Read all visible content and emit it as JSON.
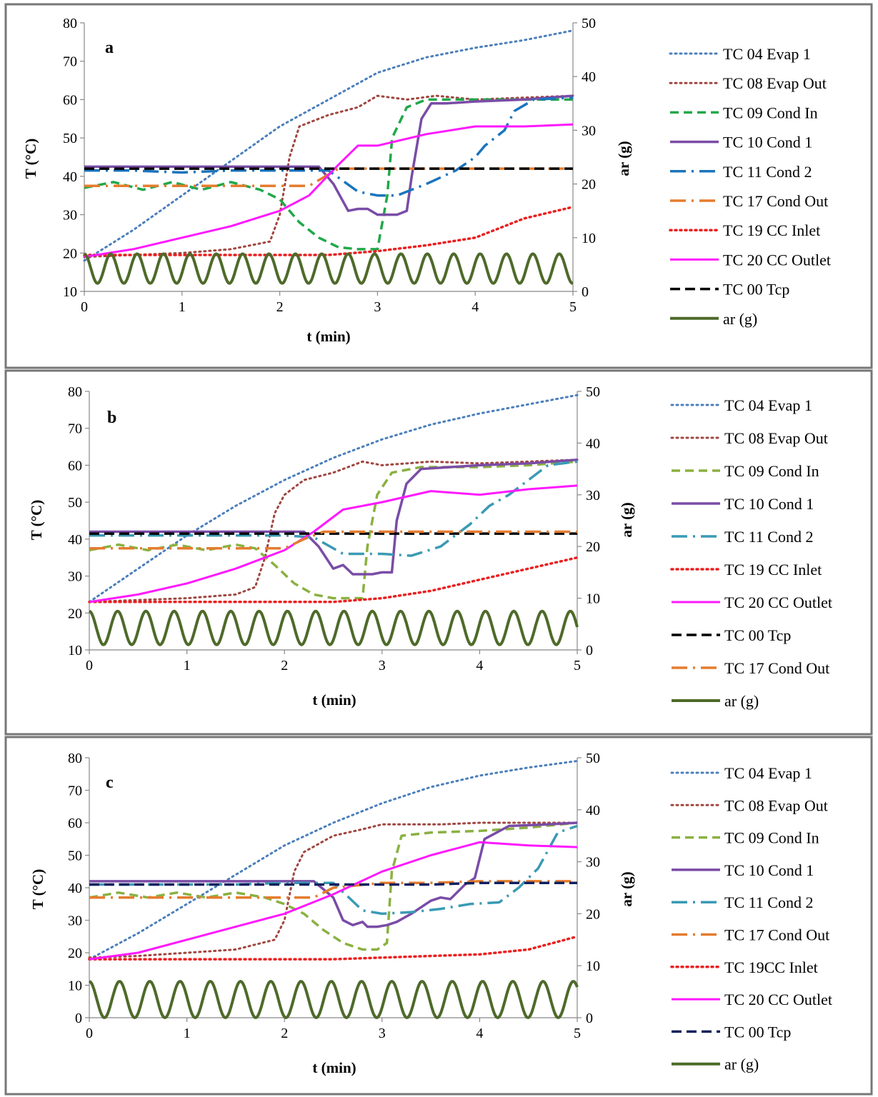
{
  "colors": {
    "TC 04 Evap 1": "#4a7ebb",
    "TC 08 Evap Out": "#a0453f",
    "TC 09 Cond In a": "#21a84a",
    "TC 09 Cond In bc": "#8ab141",
    "TC 10 Cond 1": "#7a4ca6",
    "TC 11 Cond 2 a": "#1a74bd",
    "TC 11 Cond 2 bc": "#3a9ab4",
    "TC 17 Cond Out": "#e57c2e",
    "TC 19 CC Inlet": "#ea1f1f",
    "TC 20 CC Outlet": "#ff18ff",
    "TC 00 Tcp a": "#000000",
    "TC 00 Tcp bc": "#10205e",
    "ar (g)": "#4e6a2a",
    "frame": "#777777"
  },
  "chart_data": [
    {
      "panel": "a",
      "type": "line",
      "xlabel": "t (min)",
      "ylabel": "T (°C)",
      "y2label": "ar (g)",
      "xlim": [
        0,
        5
      ],
      "ylim": [
        10,
        80
      ],
      "y2lim": [
        0,
        50
      ],
      "xticks": [
        "0",
        "1",
        "2",
        "3",
        "4",
        "5"
      ],
      "yticks": [
        "10",
        "20",
        "30",
        "40",
        "50",
        "60",
        "70",
        "80"
      ],
      "y2ticks": [
        "0",
        "10",
        "20",
        "30",
        "40",
        "50"
      ],
      "legend": [
        "TC 04 Evap 1",
        "TC 08 Evap Out",
        "TC 09 Cond In",
        "TC 10 Cond 1",
        "TC 11 Cond 2",
        "TC 17 Cond Out",
        "TC 19 CC Inlet",
        "TC 20 CC Outlet",
        "TC 00 Tcp",
        "ar (g)"
      ],
      "series": [
        {
          "name": "TC 04 Evap 1",
          "x": [
            0,
            0.5,
            1,
            1.5,
            2,
            2.5,
            3,
            3.5,
            4,
            4.5,
            5
          ],
          "y": [
            18,
            26,
            35,
            44,
            53,
            60,
            67,
            71,
            73.5,
            75.5,
            78
          ]
        },
        {
          "name": "TC 08 Evap Out",
          "x": [
            0,
            0.5,
            1,
            1.5,
            1.9,
            2.0,
            2.1,
            2.2,
            2.5,
            2.8,
            3.0,
            3.3,
            3.6,
            4.0,
            4.5,
            5
          ],
          "y": [
            19,
            19.5,
            20,
            21,
            23,
            30,
            45,
            53,
            56,
            58,
            61,
            60,
            61,
            60,
            60.5,
            61
          ]
        },
        {
          "name": "TC 09 Cond In",
          "x": [
            0,
            0.3,
            0.6,
            0.9,
            1.2,
            1.5,
            1.8,
            2.0,
            2.2,
            2.4,
            2.6,
            2.8,
            3.0,
            3.1,
            3.15,
            3.3,
            3.5,
            4.0,
            4.5,
            5
          ],
          "y": [
            37,
            38.5,
            36.5,
            38.5,
            36.5,
            38.5,
            36.5,
            34,
            28,
            24,
            21.5,
            21,
            21,
            35,
            50,
            58,
            60,
            60,
            60,
            60
          ]
        },
        {
          "name": "TC 10 Cond 1",
          "x": [
            0,
            0.5,
            1,
            1.5,
            2,
            2.4,
            2.55,
            2.7,
            2.8,
            2.9,
            3.0,
            3.1,
            3.2,
            3.3,
            3.35,
            3.45,
            3.55,
            3.7,
            4.0,
            4.5,
            5
          ],
          "y": [
            42.5,
            42.5,
            42.5,
            42.5,
            42.5,
            42.5,
            38,
            31,
            31.5,
            31.5,
            30,
            30,
            30,
            31,
            40,
            55,
            59,
            59,
            59.5,
            60,
            61
          ]
        },
        {
          "name": "TC 11 Cond 2",
          "x": [
            0,
            0.5,
            1,
            1.5,
            2,
            2.5,
            2.8,
            3.0,
            3.2,
            3.5,
            3.8,
            4.0,
            4.1,
            4.3,
            4.4,
            4.6,
            5
          ],
          "y": [
            41.5,
            41.5,
            41,
            41.5,
            41.5,
            41.5,
            36,
            35,
            35,
            38,
            41.5,
            45,
            48,
            52,
            57,
            60,
            60.5
          ]
        },
        {
          "name": "TC 17 Cond Out",
          "x": [
            0,
            0.5,
            1,
            1.5,
            2,
            2.3,
            2.6,
            3.0,
            3.5,
            4,
            4.5,
            5
          ],
          "y": [
            37.5,
            37.5,
            37.5,
            37.5,
            37.5,
            37.5,
            42,
            42,
            42,
            42,
            42,
            42
          ]
        },
        {
          "name": "TC 19 CC Inlet",
          "x": [
            0,
            0.5,
            1,
            1.5,
            2,
            2.5,
            3,
            3.5,
            4,
            4.5,
            5
          ],
          "y": [
            19.5,
            19.5,
            19.5,
            19.5,
            19.5,
            19.5,
            20.5,
            22,
            24,
            29,
            32
          ]
        },
        {
          "name": "TC 20 CC Outlet",
          "x": [
            0,
            0.5,
            1,
            1.5,
            2,
            2.3,
            2.6,
            2.8,
            3.0,
            3.5,
            4,
            4.5,
            5
          ],
          "y": [
            19,
            21,
            24,
            27,
            31,
            35,
            43,
            48,
            48,
            51,
            53,
            53,
            53.5
          ]
        },
        {
          "name": "TC 00 Tcp",
          "x": [
            0,
            0.5,
            1,
            1.5,
            2,
            2.5,
            3,
            3.5,
            4,
            4.5,
            5
          ],
          "y": [
            42,
            42,
            42,
            42,
            42,
            42,
            42,
            42,
            42,
            42,
            42
          ]
        },
        {
          "name": "ar (g)",
          "axis": "y2",
          "wave": {
            "min": 1.5,
            "max": 7,
            "period": 0.27,
            "phase": 0
          }
        }
      ]
    },
    {
      "panel": "b",
      "type": "line",
      "xlabel": "t (min)",
      "ylabel": "T  (°C)",
      "y2label": "ar (g)",
      "xlim": [
        0,
        5
      ],
      "ylim": [
        10,
        80
      ],
      "y2lim": [
        0,
        50
      ],
      "xticks": [
        "0",
        "1",
        "2",
        "3",
        "4",
        "5"
      ],
      "yticks": [
        "10",
        "20",
        "30",
        "40",
        "50",
        "60",
        "70",
        "80"
      ],
      "y2ticks": [
        "0",
        "10",
        "20",
        "30",
        "40",
        "50"
      ],
      "legend": [
        "TC 04 Evap 1",
        "TC 08 Evap Out",
        "TC 09 Cond In",
        "TC 10 Cond 1",
        "TC 11 Cond 2",
        "TC 19 CC Inlet",
        "TC 20 CC Outlet",
        "TC 00 Tcp",
        "TC 17 Cond Out",
        "ar (g)"
      ],
      "series": [
        {
          "name": "TC 04 Evap 1",
          "x": [
            0,
            0.5,
            1,
            1.5,
            2,
            2.5,
            3,
            3.5,
            4,
            4.5,
            5
          ],
          "y": [
            23,
            32,
            41,
            49,
            56,
            62,
            67,
            71,
            74,
            76.5,
            79
          ]
        },
        {
          "name": "TC 08 Evap Out",
          "x": [
            0,
            0.5,
            1,
            1.5,
            1.7,
            1.8,
            1.9,
            2.0,
            2.2,
            2.5,
            2.8,
            3.0,
            3.5,
            4,
            4.5,
            5
          ],
          "y": [
            23,
            23.5,
            24,
            25,
            27,
            35,
            47,
            52,
            56,
            58,
            61,
            60,
            61,
            60.5,
            61,
            61.5
          ]
        },
        {
          "name": "TC 09 Cond In",
          "x": [
            0,
            0.3,
            0.6,
            0.9,
            1.2,
            1.5,
            1.7,
            1.9,
            2.1,
            2.3,
            2.5,
            2.7,
            2.8,
            2.85,
            2.95,
            3.1,
            3.4,
            4,
            4.5,
            5
          ],
          "y": [
            37,
            38.5,
            37,
            38.5,
            37,
            38.5,
            37.5,
            33,
            28,
            25,
            24,
            24,
            24,
            38,
            52,
            58,
            59.5,
            59.5,
            60,
            61
          ]
        },
        {
          "name": "TC 10 Cond 1",
          "x": [
            0,
            0.5,
            1,
            1.5,
            2,
            2.2,
            2.35,
            2.5,
            2.6,
            2.7,
            2.8,
            2.9,
            3.0,
            3.1,
            3.15,
            3.25,
            3.4,
            3.7,
            4,
            4.5,
            5
          ],
          "y": [
            42,
            42,
            42,
            42,
            42,
            42,
            38,
            32,
            33,
            30.5,
            30.5,
            30.5,
            31,
            31,
            45,
            55,
            59,
            59.5,
            60,
            60.5,
            61.5
          ]
        },
        {
          "name": "TC 11 Cond 2",
          "x": [
            0,
            0.5,
            1,
            1.5,
            2,
            2.3,
            2.6,
            2.8,
            3.0,
            3.3,
            3.6,
            3.9,
            4.1,
            4.3,
            4.5,
            4.7,
            5
          ],
          "y": [
            41,
            41,
            41,
            41,
            41,
            40.5,
            36,
            36,
            36,
            35.5,
            38,
            44,
            49,
            52,
            56,
            60,
            61
          ]
        },
        {
          "name": "TC 19 CC Inlet",
          "x": [
            0,
            0.5,
            1,
            1.5,
            2,
            2.5,
            3,
            3.5,
            4,
            4.5,
            5
          ],
          "y": [
            23,
            23,
            23,
            23,
            23,
            23,
            24,
            26,
            29,
            32,
            35
          ]
        },
        {
          "name": "TC 20 CC Outlet",
          "x": [
            0,
            0.5,
            1,
            1.5,
            2,
            2.3,
            2.6,
            2.8,
            3.0,
            3.5,
            4,
            4.5,
            5
          ],
          "y": [
            23,
            25,
            28,
            32,
            37,
            42,
            48,
            49,
            50,
            53,
            52,
            53.5,
            54.5
          ]
        },
        {
          "name": "TC 00 Tcp",
          "x": [
            0,
            0.5,
            1,
            1.5,
            2,
            2.5,
            3,
            3.5,
            4,
            4.5,
            5
          ],
          "y": [
            41.5,
            41.5,
            41.5,
            41.5,
            41.5,
            41.5,
            41.5,
            41.5,
            41.5,
            41.5,
            41.5
          ]
        },
        {
          "name": "TC 17 Cond Out",
          "x": [
            0,
            0.5,
            1,
            1.5,
            2,
            2.2,
            2.4,
            3.0,
            3.5,
            4,
            4.5,
            5
          ],
          "y": [
            37.5,
            37.5,
            37.5,
            37.5,
            37.5,
            40,
            42,
            42,
            42,
            42,
            42,
            42
          ]
        },
        {
          "name": "ar (g)",
          "axis": "y2",
          "wave": {
            "min": 1,
            "max": 7.5,
            "period": 0.29,
            "phase": 0
          }
        }
      ]
    },
    {
      "panel": "c",
      "type": "line",
      "xlabel": "t (min)",
      "ylabel": "T (°C)",
      "y2label": "ar (g)",
      "xlim": [
        0,
        5
      ],
      "ylim": [
        0,
        80
      ],
      "y2lim": [
        0,
        50
      ],
      "xticks": [
        "0",
        "1",
        "2",
        "3",
        "4",
        "5"
      ],
      "yticks": [
        "0",
        "10",
        "20",
        "30",
        "40",
        "50",
        "60",
        "70",
        "80"
      ],
      "y2ticks": [
        "0",
        "10",
        "20",
        "30",
        "40",
        "50"
      ],
      "legend": [
        "TC 04 Evap 1",
        "TC 08 Evap Out",
        "TC 09 Cond In",
        "TC 10 Cond 1",
        "TC 11 Cond 2",
        "TC 17 Cond Out",
        "TC 19CC Inlet",
        "TC 20 CC Outlet",
        "TC 00 Tcp",
        "ar (g)"
      ],
      "series": [
        {
          "name": "TC 04 Evap 1",
          "x": [
            0,
            0.5,
            1,
            1.5,
            2,
            2.5,
            3,
            3.5,
            4,
            4.5,
            5
          ],
          "y": [
            18,
            26,
            35,
            44,
            53,
            60,
            66,
            71,
            74.5,
            77,
            79
          ]
        },
        {
          "name": "TC 08 Evap Out",
          "x": [
            0,
            0.5,
            1,
            1.5,
            1.9,
            2.0,
            2.1,
            2.2,
            2.5,
            2.8,
            3.0,
            3.3,
            3.6,
            4.0,
            4.5,
            5
          ],
          "y": [
            18.5,
            19,
            20,
            21,
            24,
            30,
            45,
            51,
            56,
            58,
            59.5,
            59.5,
            59.5,
            60,
            60,
            60
          ]
        },
        {
          "name": "TC 09 Cond In",
          "x": [
            0,
            0.3,
            0.6,
            0.9,
            1.2,
            1.5,
            1.8,
            2.0,
            2.2,
            2.4,
            2.6,
            2.8,
            2.95,
            3.05,
            3.1,
            3.2,
            3.5,
            4,
            4.5,
            5
          ],
          "y": [
            37,
            38.5,
            37,
            38.5,
            37,
            38.5,
            37,
            35,
            32,
            27,
            23,
            21,
            21,
            23,
            45,
            56,
            57,
            57.5,
            58.5,
            60
          ]
        },
        {
          "name": "TC 10 Cond 1",
          "x": [
            0,
            0.5,
            1,
            1.5,
            2,
            2.3,
            2.5,
            2.6,
            2.7,
            2.8,
            2.85,
            2.95,
            3.05,
            3.15,
            3.3,
            3.5,
            3.6,
            3.7,
            3.85,
            3.95,
            4.05,
            4.3,
            4.7,
            5
          ],
          "y": [
            42,
            42,
            42,
            42,
            42,
            42,
            37,
            30,
            28.5,
            29.5,
            28,
            28,
            28.5,
            29.5,
            32,
            36,
            37,
            36.5,
            41,
            43,
            55,
            59,
            59.5,
            60
          ]
        },
        {
          "name": "TC 11 Cond 2",
          "x": [
            0,
            0.5,
            1,
            1.5,
            2,
            2.5,
            2.8,
            3.0,
            3.3,
            3.6,
            3.9,
            4.2,
            4.4,
            4.6,
            4.8,
            5
          ],
          "y": [
            41,
            41,
            41,
            41,
            41.5,
            41.5,
            33,
            32,
            32.5,
            33.5,
            35,
            35.5,
            40,
            46,
            57,
            59
          ]
        },
        {
          "name": "TC 17 Cond Out",
          "x": [
            0,
            0.5,
            1,
            1.5,
            2,
            2.3,
            2.5,
            3.0,
            3.5,
            4,
            4.5,
            5
          ],
          "y": [
            37,
            37,
            37,
            37,
            37,
            37,
            40,
            41.5,
            41.5,
            42,
            42,
            42
          ]
        },
        {
          "name": "TC 19CC Inlet",
          "x": [
            0,
            0.5,
            1,
            1.5,
            2,
            2.5,
            3,
            3.5,
            4,
            4.5,
            5
          ],
          "y": [
            18,
            18,
            18,
            18,
            18,
            18,
            18.5,
            19,
            19.5,
            21,
            25
          ]
        },
        {
          "name": "TC 20 CC Outlet",
          "x": [
            0,
            0.5,
            1,
            1.5,
            2,
            2.5,
            3,
            3.5,
            4,
            4.5,
            5
          ],
          "y": [
            18,
            20,
            24,
            28,
            32,
            38,
            45,
            50,
            54,
            53,
            52.5
          ]
        },
        {
          "name": "TC 00 Tcp",
          "x": [
            0,
            0.5,
            1,
            1.5,
            2,
            2.5,
            3,
            3.5,
            4,
            4.5,
            5
          ],
          "y": [
            41,
            41,
            41,
            41,
            41,
            41,
            41,
            41,
            41.5,
            41.5,
            41.5
          ]
        },
        {
          "name": "ar (g)",
          "axis": "y2",
          "wave": {
            "min": 0,
            "max": 7,
            "period": 0.31,
            "phase": 0
          }
        }
      ]
    }
  ]
}
